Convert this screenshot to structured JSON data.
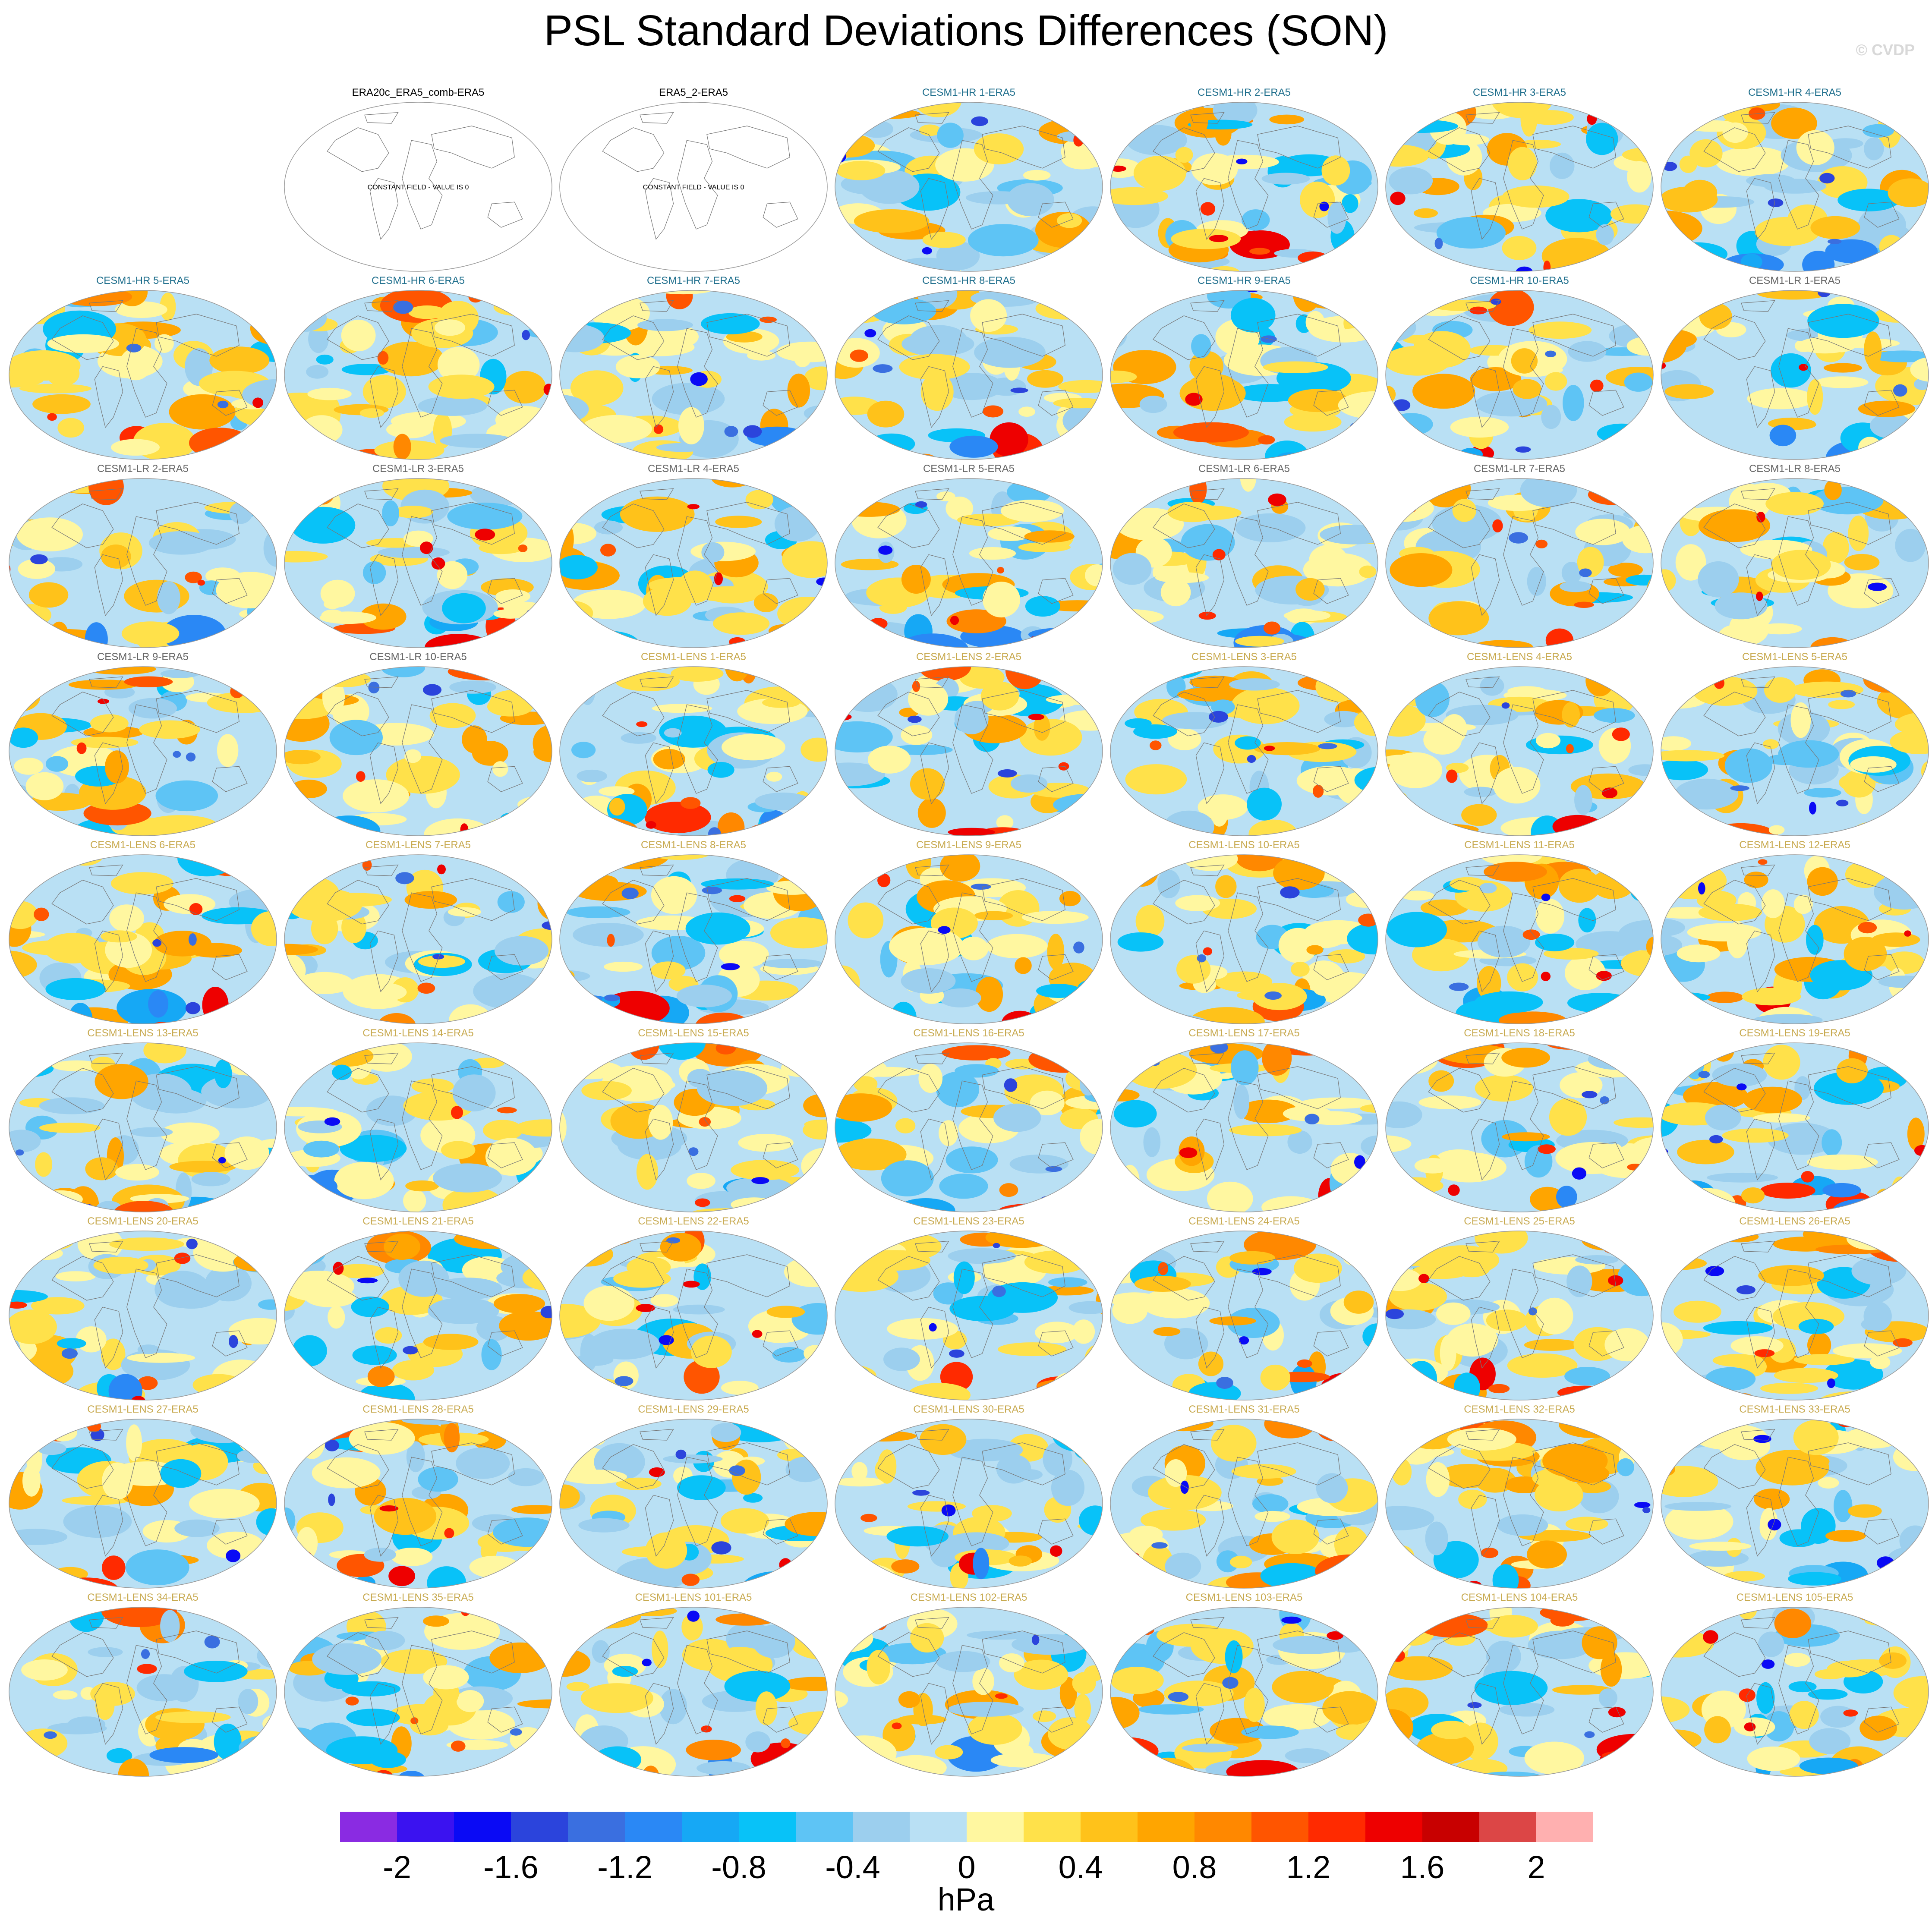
{
  "title": "PSL Standard Deviations Differences (SON)",
  "watermark": "© CVDP",
  "constant_field_label": "CONSTANT FIELD - VALUE IS 0",
  "colorbar": {
    "units": "hPa",
    "tick_labels": [
      "-2",
      "-1.6",
      "-1.2",
      "-0.8",
      "-0.4",
      "0",
      "0.4",
      "0.8",
      "1.2",
      "1.6",
      "2"
    ],
    "colors": [
      "#8a2be2",
      "#3b12f0",
      "#0a0af5",
      "#2b44dc",
      "#3a6fe0",
      "#2a88f5",
      "#16a8f5",
      "#08c2f8",
      "#5ec4f5",
      "#9ccfee",
      "#b9e0f4",
      "#fff7a0",
      "#ffe14a",
      "#ffc21a",
      "#ffa500",
      "#ff8800",
      "#ff5500",
      "#ff2a00",
      "#ee0000",
      "#c80000",
      "#dc4646",
      "#ffb0b0"
    ],
    "label_color": "#000000"
  },
  "title_colors": {
    "obs": "#000000",
    "hr": "#1e6e8c",
    "lr": "#666666",
    "lens": "#c8aa50"
  },
  "panels": [
    {
      "title": "ERA20c_ERA5_comb-ERA5",
      "group": "obs",
      "constant": true
    },
    {
      "title": "ERA5_2-ERA5",
      "group": "obs",
      "constant": true
    },
    {
      "title": "CESM1-HR 1-ERA5",
      "group": "hr"
    },
    {
      "title": "CESM1-HR 2-ERA5",
      "group": "hr"
    },
    {
      "title": "CESM1-HR 3-ERA5",
      "group": "hr"
    },
    {
      "title": "CESM1-HR 4-ERA5",
      "group": "hr"
    },
    {
      "title": "CESM1-HR 5-ERA5",
      "group": "hr"
    },
    {
      "title": "CESM1-HR 6-ERA5",
      "group": "hr"
    },
    {
      "title": "CESM1-HR 7-ERA5",
      "group": "hr"
    },
    {
      "title": "CESM1-HR 8-ERA5",
      "group": "hr"
    },
    {
      "title": "CESM1-HR 9-ERA5",
      "group": "hr"
    },
    {
      "title": "CESM1-HR 10-ERA5",
      "group": "hr"
    },
    {
      "title": "CESM1-LR 1-ERA5",
      "group": "lr"
    },
    {
      "title": "CESM1-LR 2-ERA5",
      "group": "lr"
    },
    {
      "title": "CESM1-LR 3-ERA5",
      "group": "lr"
    },
    {
      "title": "CESM1-LR 4-ERA5",
      "group": "lr"
    },
    {
      "title": "CESM1-LR 5-ERA5",
      "group": "lr"
    },
    {
      "title": "CESM1-LR 6-ERA5",
      "group": "lr"
    },
    {
      "title": "CESM1-LR 7-ERA5",
      "group": "lr"
    },
    {
      "title": "CESM1-LR 8-ERA5",
      "group": "lr"
    },
    {
      "title": "CESM1-LR 9-ERA5",
      "group": "lr"
    },
    {
      "title": "CESM1-LR 10-ERA5",
      "group": "lr"
    },
    {
      "title": "CESM1-LENS 1-ERA5",
      "group": "lens"
    },
    {
      "title": "CESM1-LENS 2-ERA5",
      "group": "lens"
    },
    {
      "title": "CESM1-LENS 3-ERA5",
      "group": "lens"
    },
    {
      "title": "CESM1-LENS 4-ERA5",
      "group": "lens"
    },
    {
      "title": "CESM1-LENS 5-ERA5",
      "group": "lens"
    },
    {
      "title": "CESM1-LENS 6-ERA5",
      "group": "lens"
    },
    {
      "title": "CESM1-LENS 7-ERA5",
      "group": "lens"
    },
    {
      "title": "CESM1-LENS 8-ERA5",
      "group": "lens"
    },
    {
      "title": "CESM1-LENS 9-ERA5",
      "group": "lens"
    },
    {
      "title": "CESM1-LENS 10-ERA5",
      "group": "lens"
    },
    {
      "title": "CESM1-LENS 11-ERA5",
      "group": "lens"
    },
    {
      "title": "CESM1-LENS 12-ERA5",
      "group": "lens"
    },
    {
      "title": "CESM1-LENS 13-ERA5",
      "group": "lens"
    },
    {
      "title": "CESM1-LENS 14-ERA5",
      "group": "lens"
    },
    {
      "title": "CESM1-LENS 15-ERA5",
      "group": "lens"
    },
    {
      "title": "CESM1-LENS 16-ERA5",
      "group": "lens"
    },
    {
      "title": "CESM1-LENS 17-ERA5",
      "group": "lens"
    },
    {
      "title": "CESM1-LENS 18-ERA5",
      "group": "lens"
    },
    {
      "title": "CESM1-LENS 19-ERA5",
      "group": "lens"
    },
    {
      "title": "CESM1-LENS 20-ERA5",
      "group": "lens"
    },
    {
      "title": "CESM1-LENS 21-ERA5",
      "group": "lens"
    },
    {
      "title": "CESM1-LENS 22-ERA5",
      "group": "lens"
    },
    {
      "title": "CESM1-LENS 23-ERA5",
      "group": "lens"
    },
    {
      "title": "CESM1-LENS 24-ERA5",
      "group": "lens"
    },
    {
      "title": "CESM1-LENS 25-ERA5",
      "group": "lens"
    },
    {
      "title": "CESM1-LENS 26-ERA5",
      "group": "lens"
    },
    {
      "title": "CESM1-LENS 27-ERA5",
      "group": "lens"
    },
    {
      "title": "CESM1-LENS 28-ERA5",
      "group": "lens"
    },
    {
      "title": "CESM1-LENS 29-ERA5",
      "group": "lens"
    },
    {
      "title": "CESM1-LENS 30-ERA5",
      "group": "lens"
    },
    {
      "title": "CESM1-LENS 31-ERA5",
      "group": "lens"
    },
    {
      "title": "CESM1-LENS 32-ERA5",
      "group": "lens"
    },
    {
      "title": "CESM1-LENS 33-ERA5",
      "group": "lens"
    },
    {
      "title": "CESM1-LENS 34-ERA5",
      "group": "lens"
    },
    {
      "title": "CESM1-LENS 35-ERA5",
      "group": "lens"
    },
    {
      "title": "CESM1-LENS 101-ERA5",
      "group": "lens"
    },
    {
      "title": "CESM1-LENS 102-ERA5",
      "group": "lens"
    },
    {
      "title": "CESM1-LENS 103-ERA5",
      "group": "lens"
    },
    {
      "title": "CESM1-LENS 104-ERA5",
      "group": "lens"
    },
    {
      "title": "CESM1-LENS 105-ERA5",
      "group": "lens"
    }
  ]
}
